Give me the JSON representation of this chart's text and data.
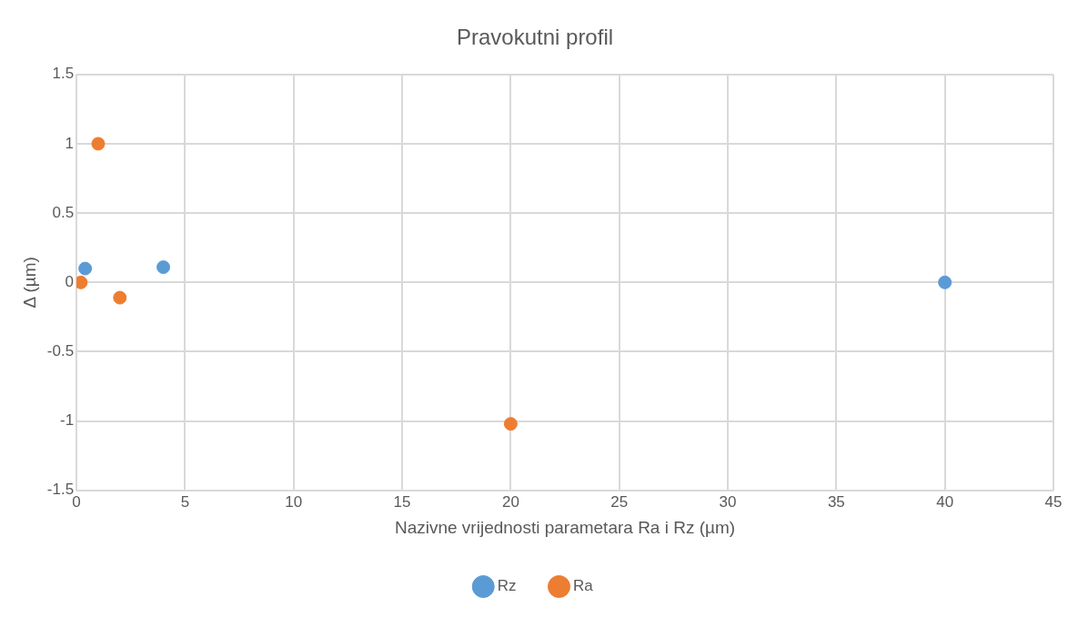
{
  "chart_data": {
    "type": "scatter",
    "title": "Pravokutni profil",
    "xlabel": "Nazivne vrijednosti parametara Ra i Rz (µm)",
    "ylabel": "Δ (µm)",
    "series": [
      {
        "name": "Rz",
        "color": "#5b9bd5",
        "x": [
          0.4,
          4,
          40
        ],
        "values": [
          0.1,
          0.11,
          0
        ]
      },
      {
        "name": "Ra",
        "color": "#ed7d31",
        "x": [
          0.2,
          1,
          2,
          20
        ],
        "values": [
          0,
          1,
          -0.11,
          -1.02
        ]
      }
    ],
    "xlim": [
      0,
      45
    ],
    "xticks": [
      0,
      5,
      10,
      15,
      20,
      25,
      30,
      35,
      40,
      45
    ],
    "ylim": [
      -1.5,
      1.5
    ],
    "yticks": [
      -1.5,
      -1,
      -0.5,
      0,
      0.5,
      1,
      1.5
    ],
    "grid": true,
    "legend": "bottom",
    "marker": "circle"
  }
}
